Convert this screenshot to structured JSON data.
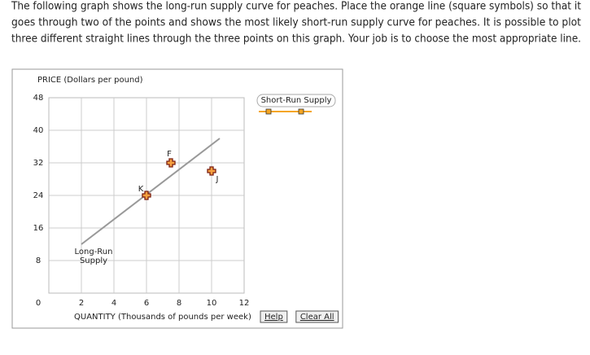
{
  "instructions": [
    "The following graph shows the long-run supply curve for peaches. Place the orange line (square symbols) so that it",
    "goes through two of the points and shows the most likely short-run supply curve for peaches. It is possible to plot",
    "three different straight lines through the three points on this graph. Your job is to choose the most appropriate line."
  ],
  "chart_data": {
    "type": "line",
    "y_label": "PRICE (Dollars per pound)",
    "x_label": "QUANTITY (Thousands of pounds per week)",
    "xlim": [
      0,
      12
    ],
    "ylim": [
      0,
      48
    ],
    "xticks": [
      2,
      4,
      6,
      8,
      10,
      12
    ],
    "yticks": [
      0,
      8,
      16,
      24,
      32,
      40,
      48
    ],
    "grid": true,
    "series": [
      {
        "name": "Long-Run Supply",
        "color": "#999999",
        "x": [
          2,
          10.5
        ],
        "values": [
          12,
          38
        ]
      }
    ],
    "points": [
      {
        "label": "K",
        "x": 6,
        "y": 24
      },
      {
        "label": "F",
        "x": 7.5,
        "y": 32
      },
      {
        "label": "J",
        "x": 10,
        "y": 30
      }
    ],
    "tools": [
      {
        "name": "Short-Run Supply",
        "color": "#f5a623"
      }
    ],
    "buttons": [
      "Help",
      "Clear All"
    ]
  }
}
